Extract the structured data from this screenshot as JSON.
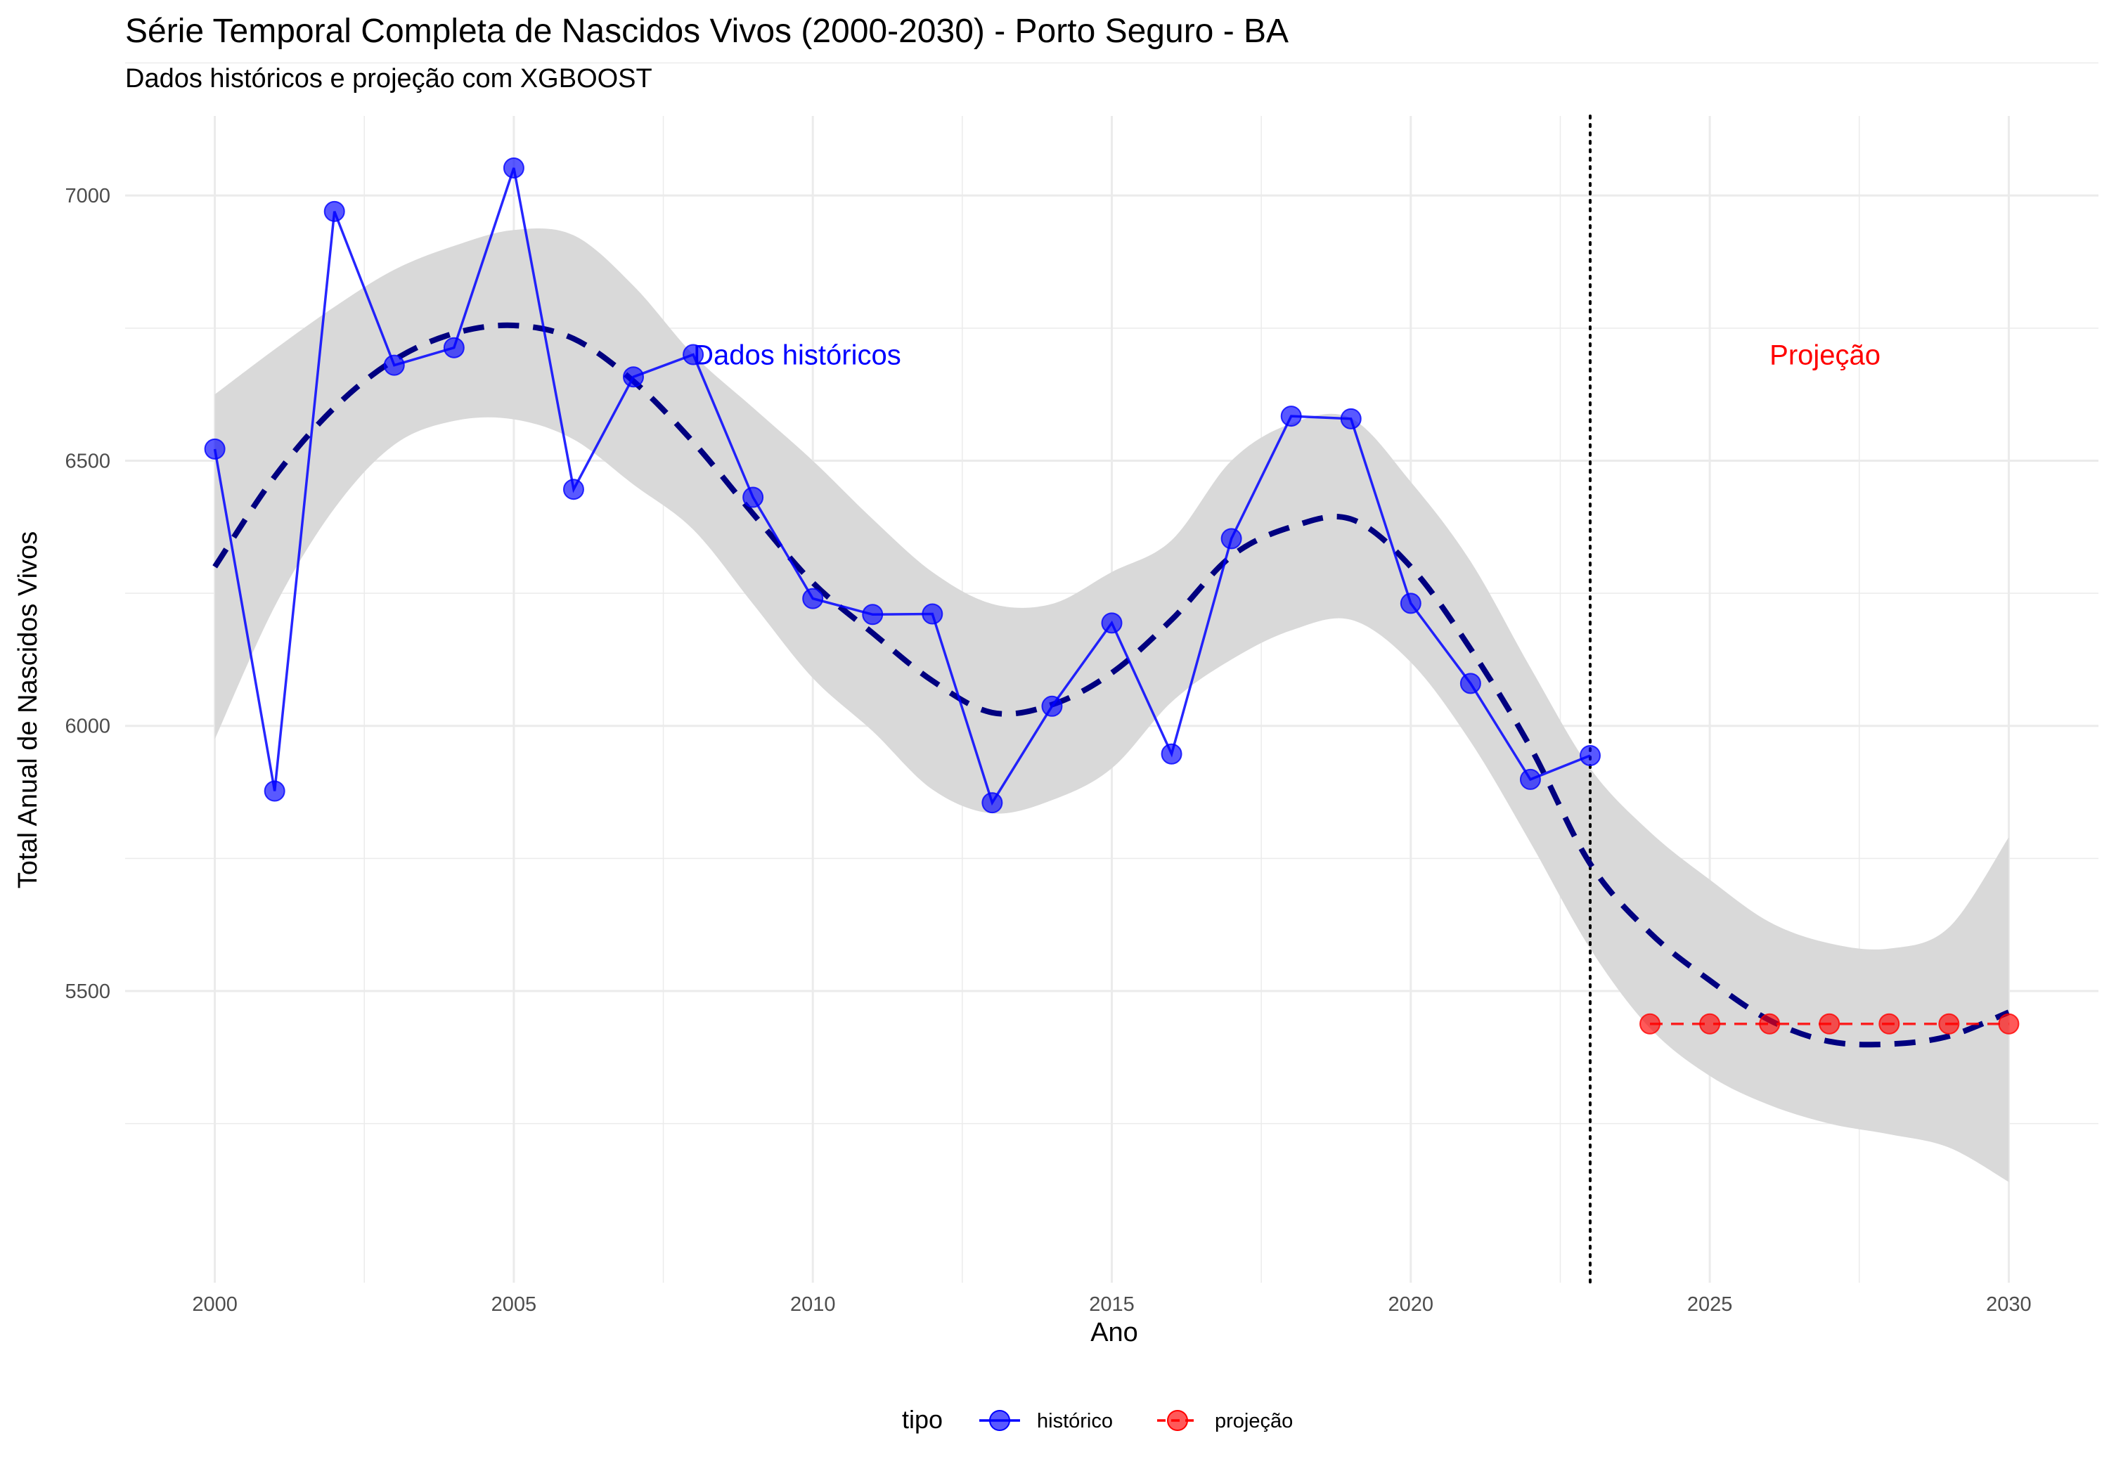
{
  "chart_data": {
    "type": "line",
    "title": "Série Temporal Completa de Nascidos Vivos (2000-2030) -  Porto Seguro - BA",
    "subtitle": "Dados históricos e projeção com XGBOOST",
    "xlabel": "Ano",
    "ylabel": "Total Anual de Nascidos Vivos",
    "xlim": [
      1998.5,
      2031.5
    ],
    "ylim": [
      4950,
      7150
    ],
    "x_ticks": [
      2000,
      2005,
      2010,
      2015,
      2020,
      2025,
      2030
    ],
    "y_ticks": [
      5500,
      6000,
      6500,
      7000
    ],
    "grid": true,
    "legend": {
      "title": "tipo",
      "position": "bottom",
      "entries": [
        "histórico",
        "projeção"
      ]
    },
    "series": [
      {
        "name": "histórico",
        "color": "#0000ff",
        "line_style": "solid",
        "x": [
          2000,
          2001,
          2002,
          2003,
          2004,
          2005,
          2006,
          2007,
          2008,
          2009,
          2010,
          2011,
          2012,
          2013,
          2014,
          2015,
          2016,
          2017,
          2018,
          2019,
          2020,
          2021,
          2022,
          2023
        ],
        "values": [
          6522,
          5877,
          6970,
          6680,
          6713,
          7052,
          6446,
          6658,
          6700,
          6431,
          6240,
          6210,
          6211,
          5855,
          6037,
          6194,
          5947,
          6353,
          6584,
          6579,
          6231,
          6080,
          5899,
          5944
        ]
      },
      {
        "name": "projeção",
        "color": "#ff0000",
        "line_style": "dashed",
        "x": [
          2024,
          2025,
          2026,
          2027,
          2028,
          2029,
          2030
        ],
        "values": [
          5438,
          5438,
          5438,
          5438,
          5438,
          5438,
          5438
        ]
      }
    ],
    "trend": {
      "color": "#000080",
      "line_style": "dashed",
      "x": [
        2000,
        2001,
        2002,
        2003,
        2004,
        2005,
        2006,
        2007,
        2008,
        2009,
        2010,
        2011,
        2012,
        2013,
        2014,
        2015,
        2016,
        2017,
        2018,
        2019,
        2020,
        2021,
        2022,
        2023,
        2024,
        2025,
        2026,
        2027,
        2028,
        2029,
        2030
      ],
      "values": [
        6300,
        6470,
        6600,
        6690,
        6740,
        6755,
        6730,
        6650,
        6535,
        6400,
        6270,
        6175,
        6085,
        6025,
        6040,
        6100,
        6200,
        6320,
        6375,
        6390,
        6300,
        6145,
        5960,
        5740,
        5610,
        5520,
        5445,
        5405,
        5400,
        5415,
        5460
      ],
      "ci_upper": [
        6625,
        6710,
        6790,
        6860,
        6905,
        6935,
        6925,
        6830,
        6700,
        6600,
        6500,
        6390,
        6290,
        6230,
        6230,
        6290,
        6350,
        6500,
        6570,
        6580,
        6460,
        6310,
        6110,
        5920,
        5800,
        5710,
        5630,
        5590,
        5580,
        5620,
        5790
      ],
      "ci_lower": [
        5975,
        6225,
        6410,
        6530,
        6575,
        6578,
        6540,
        6455,
        6370,
        6230,
        6090,
        5990,
        5880,
        5835,
        5860,
        5920,
        6045,
        6125,
        6180,
        6200,
        6120,
        5970,
        5780,
        5580,
        5430,
        5340,
        5285,
        5250,
        5230,
        5205,
        5140
      ]
    },
    "vline": {
      "x": 2023,
      "style": "dotted",
      "color": "#000000"
    },
    "annotations": [
      {
        "text": "Dados históricos",
        "x": 2008,
        "y": 6700,
        "color": "#0000ff"
      },
      {
        "text": "Projeção",
        "x": 2026,
        "y": 6700,
        "color": "#ff0000"
      }
    ],
    "colors": {
      "ribbon": "#d9d9d9",
      "grid": "#ebebeb",
      "tick_text": "#4d4d4d"
    }
  }
}
